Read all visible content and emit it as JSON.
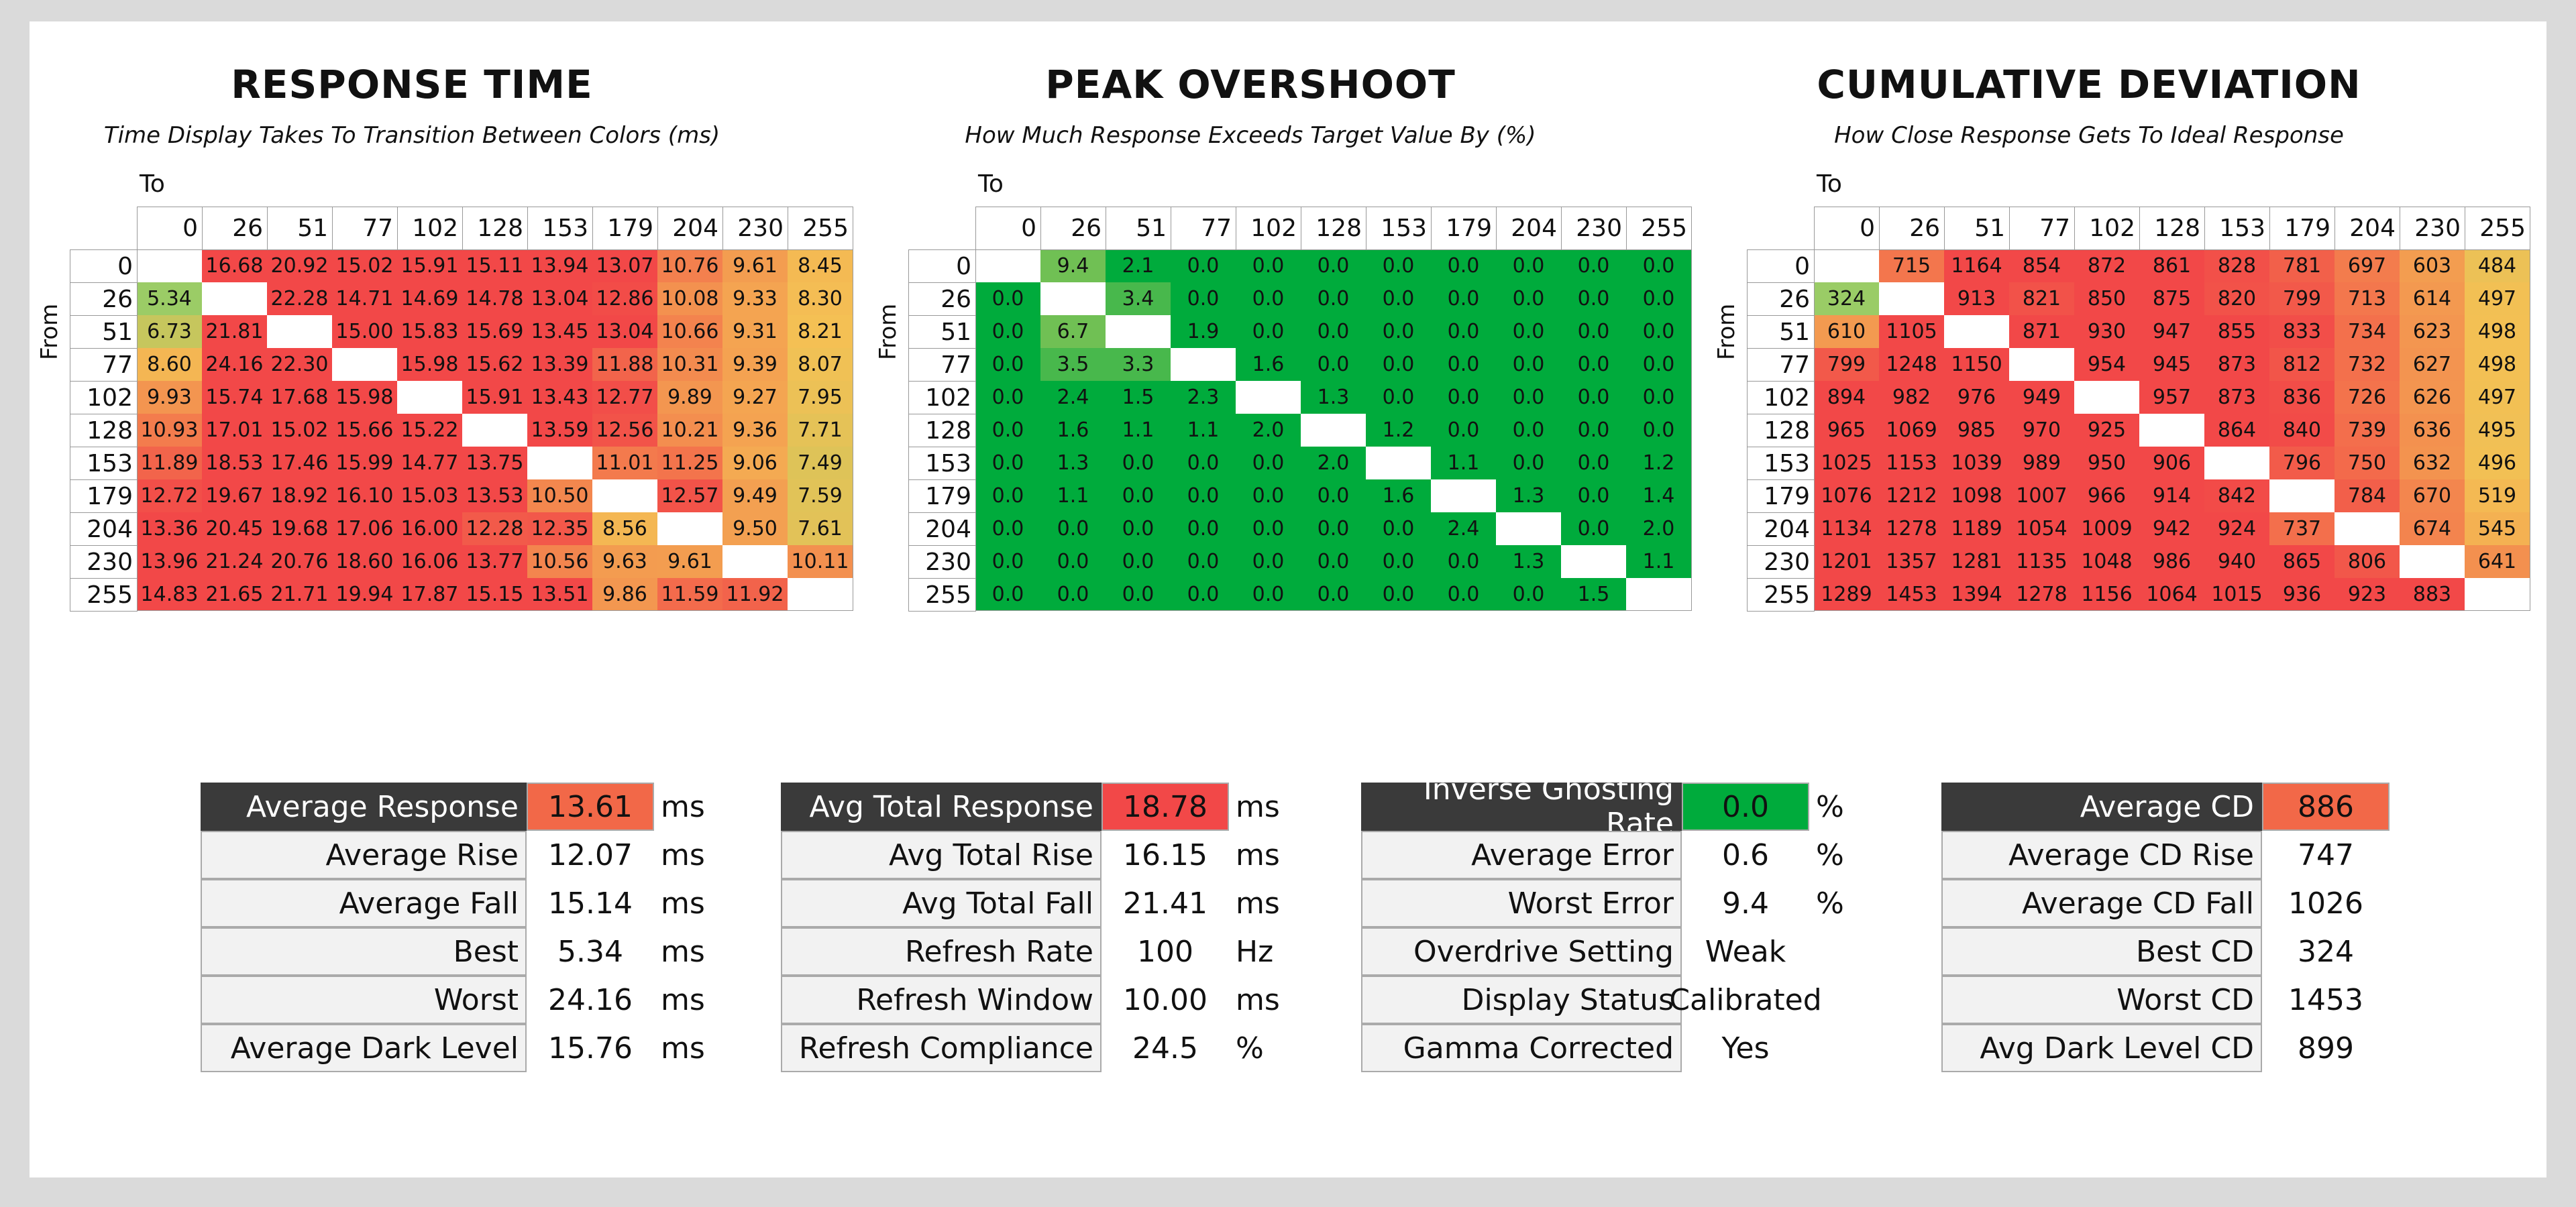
{
  "colors": {
    "green_hi": "#00ab3c",
    "green_light": "#9ccc66",
    "orange": "#f8a050",
    "yellow": "#f4c054",
    "red": "#f24848",
    "dark_label": "#3a3a3a"
  },
  "chart_data": [
    {
      "type": "heatmap",
      "title": "RESPONSE TIME",
      "subtitle": "Time Display Takes To Transition Between Colors (ms)",
      "xlabel": "To",
      "ylabel": "From",
      "labels": [
        "0",
        "26",
        "51",
        "77",
        "102",
        "128",
        "153",
        "179",
        "204",
        "230",
        "255"
      ],
      "matrix": [
        [
          null,
          "16.68",
          "20.92",
          "15.02",
          "15.91",
          "15.11",
          "13.94",
          "13.07",
          "10.76",
          "9.61",
          "8.45"
        ],
        [
          "5.34",
          null,
          "22.28",
          "14.71",
          "14.69",
          "14.78",
          "13.04",
          "12.86",
          "10.08",
          "9.33",
          "8.30"
        ],
        [
          "6.73",
          "21.81",
          null,
          "15.00",
          "15.83",
          "15.69",
          "13.45",
          "13.04",
          "10.66",
          "9.31",
          "8.21"
        ],
        [
          "8.60",
          "24.16",
          "22.30",
          null,
          "15.98",
          "15.62",
          "13.39",
          "11.88",
          "10.31",
          "9.39",
          "8.07"
        ],
        [
          "9.93",
          "15.74",
          "17.68",
          "15.98",
          null,
          "15.91",
          "13.43",
          "12.77",
          "9.89",
          "9.27",
          "7.95"
        ],
        [
          "10.93",
          "17.01",
          "15.02",
          "15.66",
          "15.22",
          null,
          "13.59",
          "12.56",
          "10.21",
          "9.36",
          "7.71"
        ],
        [
          "11.89",
          "18.53",
          "17.46",
          "15.99",
          "14.77",
          "13.75",
          null,
          "11.01",
          "11.25",
          "9.06",
          "7.49"
        ],
        [
          "12.72",
          "19.67",
          "18.92",
          "16.10",
          "15.03",
          "13.53",
          "10.50",
          null,
          "12.57",
          "9.49",
          "7.59"
        ],
        [
          "13.36",
          "20.45",
          "19.68",
          "17.06",
          "16.00",
          "12.28",
          "12.35",
          "8.56",
          null,
          "9.50",
          "7.61"
        ],
        [
          "13.96",
          "21.24",
          "20.76",
          "18.60",
          "16.06",
          "13.77",
          "10.56",
          "9.63",
          "9.61",
          null,
          "10.11"
        ],
        [
          "14.83",
          "21.65",
          "21.71",
          "19.94",
          "17.87",
          "15.15",
          "13.51",
          "9.86",
          "11.59",
          "11.92",
          null
        ]
      ]
    },
    {
      "type": "heatmap",
      "title": "PEAK OVERSHOOT",
      "subtitle": "How Much Response Exceeds Target Value By (%)",
      "xlabel": "To",
      "ylabel": "From",
      "labels": [
        "0",
        "26",
        "51",
        "77",
        "102",
        "128",
        "153",
        "179",
        "204",
        "230",
        "255"
      ],
      "matrix": [
        [
          null,
          "9.4",
          "2.1",
          "0.0",
          "0.0",
          "0.0",
          "0.0",
          "0.0",
          "0.0",
          "0.0",
          "0.0"
        ],
        [
          "0.0",
          null,
          "3.4",
          "0.0",
          "0.0",
          "0.0",
          "0.0",
          "0.0",
          "0.0",
          "0.0",
          "0.0"
        ],
        [
          "0.0",
          "6.7",
          null,
          "1.9",
          "0.0",
          "0.0",
          "0.0",
          "0.0",
          "0.0",
          "0.0",
          "0.0"
        ],
        [
          "0.0",
          "3.5",
          "3.3",
          null,
          "1.6",
          "0.0",
          "0.0",
          "0.0",
          "0.0",
          "0.0",
          "0.0"
        ],
        [
          "0.0",
          "2.4",
          "1.5",
          "2.3",
          null,
          "1.3",
          "0.0",
          "0.0",
          "0.0",
          "0.0",
          "0.0"
        ],
        [
          "0.0",
          "1.6",
          "1.1",
          "1.1",
          "2.0",
          null,
          "1.2",
          "0.0",
          "0.0",
          "0.0",
          "0.0"
        ],
        [
          "0.0",
          "1.3",
          "0.0",
          "0.0",
          "0.0",
          "2.0",
          null,
          "1.1",
          "0.0",
          "0.0",
          "1.2"
        ],
        [
          "0.0",
          "1.1",
          "0.0",
          "0.0",
          "0.0",
          "0.0",
          "1.6",
          null,
          "1.3",
          "0.0",
          "1.4"
        ],
        [
          "0.0",
          "0.0",
          "0.0",
          "0.0",
          "0.0",
          "0.0",
          "0.0",
          "2.4",
          null,
          "0.0",
          "2.0"
        ],
        [
          "0.0",
          "0.0",
          "0.0",
          "0.0",
          "0.0",
          "0.0",
          "0.0",
          "0.0",
          "1.3",
          null,
          "1.1"
        ],
        [
          "0.0",
          "0.0",
          "0.0",
          "0.0",
          "0.0",
          "0.0",
          "0.0",
          "0.0",
          "0.0",
          "1.5",
          null
        ]
      ]
    },
    {
      "type": "heatmap",
      "title": "CUMULATIVE DEVIATION",
      "subtitle": "How Close Response Gets To Ideal Response",
      "xlabel": "To",
      "ylabel": "From",
      "labels": [
        "0",
        "26",
        "51",
        "77",
        "102",
        "128",
        "153",
        "179",
        "204",
        "230",
        "255"
      ],
      "matrix": [
        [
          null,
          "715",
          "1164",
          "854",
          "872",
          "861",
          "828",
          "781",
          "697",
          "603",
          "484"
        ],
        [
          "324",
          null,
          "913",
          "821",
          "850",
          "875",
          "820",
          "799",
          "713",
          "614",
          "497"
        ],
        [
          "610",
          "1105",
          null,
          "871",
          "930",
          "947",
          "855",
          "833",
          "734",
          "623",
          "498"
        ],
        [
          "799",
          "1248",
          "1150",
          null,
          "954",
          "945",
          "873",
          "812",
          "732",
          "627",
          "498"
        ],
        [
          "894",
          "982",
          "976",
          "949",
          null,
          "957",
          "873",
          "836",
          "726",
          "626",
          "497"
        ],
        [
          "965",
          "1069",
          "985",
          "970",
          "925",
          null,
          "864",
          "840",
          "739",
          "636",
          "495"
        ],
        [
          "1025",
          "1153",
          "1039",
          "989",
          "950",
          "906",
          null,
          "796",
          "750",
          "632",
          "496"
        ],
        [
          "1076",
          "1212",
          "1098",
          "1007",
          "966",
          "914",
          "842",
          null,
          "784",
          "670",
          "519"
        ],
        [
          "1134",
          "1278",
          "1189",
          "1054",
          "1009",
          "942",
          "924",
          "737",
          null,
          "674",
          "545"
        ],
        [
          "1201",
          "1357",
          "1281",
          "1135",
          "1048",
          "986",
          "940",
          "865",
          "806",
          null,
          "641"
        ],
        [
          "1289",
          "1453",
          "1394",
          "1278",
          "1156",
          "1064",
          "1015",
          "936",
          "923",
          "883",
          null
        ]
      ]
    }
  ],
  "stats": [
    {
      "rows": [
        {
          "label": "Average Response",
          "value": "13.61",
          "unit": "ms",
          "main": true,
          "color": "#f26848"
        },
        {
          "label": "Average Rise",
          "value": "12.07",
          "unit": "ms"
        },
        {
          "label": "Average Fall",
          "value": "15.14",
          "unit": "ms"
        },
        {
          "label": "Best",
          "value": "5.34",
          "unit": "ms"
        },
        {
          "label": "Worst",
          "value": "24.16",
          "unit": "ms"
        },
        {
          "label": "Average Dark Level",
          "value": "15.76",
          "unit": "ms"
        }
      ]
    },
    {
      "rows": [
        {
          "label": "Avg Total Response",
          "value": "18.78",
          "unit": "ms",
          "main": true,
          "color": "#f24848"
        },
        {
          "label": "Avg Total Rise",
          "value": "16.15",
          "unit": "ms"
        },
        {
          "label": "Avg Total Fall",
          "value": "21.41",
          "unit": "ms"
        },
        {
          "label": "Refresh Rate",
          "value": "100",
          "unit": "Hz",
          "gap": true
        },
        {
          "label": "Refresh Window",
          "value": "10.00",
          "unit": "ms"
        },
        {
          "label": "Refresh Compliance",
          "value": "24.5",
          "unit": "%"
        }
      ]
    },
    {
      "rows": [
        {
          "label": "Inverse Ghosting Rate",
          "value": "0.0",
          "unit": "%",
          "main": true,
          "color": "#00ab3c"
        },
        {
          "label": "Average Error",
          "value": "0.6",
          "unit": "%"
        },
        {
          "label": "Worst Error",
          "value": "9.4",
          "unit": "%"
        },
        {
          "label": "Overdrive Setting",
          "value": "Weak",
          "unit": "",
          "gap": true
        },
        {
          "label": "Display Status",
          "value": "Calibrated",
          "unit": ""
        },
        {
          "label": "Gamma Corrected",
          "value": "Yes",
          "unit": ""
        }
      ]
    },
    {
      "rows": [
        {
          "label": "Average CD",
          "value": "886",
          "unit": "",
          "main": true,
          "color": "#f26848"
        },
        {
          "label": "Average CD Rise",
          "value": "747",
          "unit": ""
        },
        {
          "label": "Average CD Fall",
          "value": "1026",
          "unit": ""
        },
        {
          "label": "Best CD",
          "value": "324",
          "unit": ""
        },
        {
          "label": "Worst CD",
          "value": "1453",
          "unit": ""
        },
        {
          "label": "Avg Dark Level CD",
          "value": "899",
          "unit": ""
        }
      ]
    }
  ]
}
